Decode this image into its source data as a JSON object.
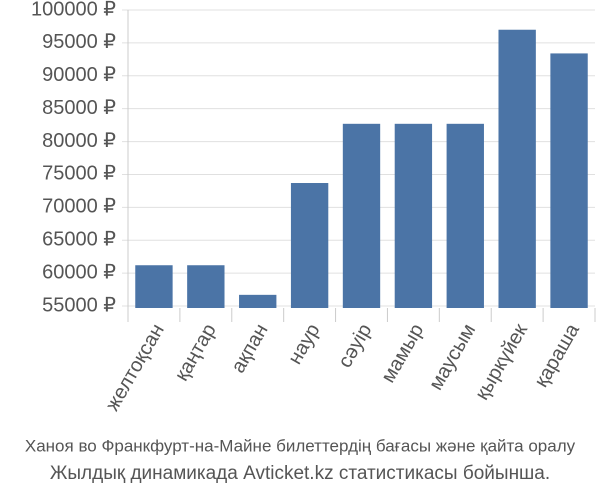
{
  "chart_data": {
    "type": "bar",
    "categories": [
      "желтоқсан",
      "қаңтар",
      "ақпан",
      "наур",
      "сәуір",
      "мамыр",
      "маусым",
      "қыркүйек",
      "қараша"
    ],
    "values": [
      61200,
      61200,
      56700,
      73700,
      82700,
      82700,
      82700,
      97000,
      93400
    ],
    "color": "#4b74a6",
    "ylim": [
      54700,
      100000
    ],
    "yticks": [
      {
        "value": 55000,
        "label": "55000 ₽"
      },
      {
        "value": 60000,
        "label": "60000 ₽"
      },
      {
        "value": 65000,
        "label": "65000 ₽"
      },
      {
        "value": 70000,
        "label": "70000 ₽"
      },
      {
        "value": 75000,
        "label": "75000 ₽"
      },
      {
        "value": 80000,
        "label": "80000 ₽"
      },
      {
        "value": 85000,
        "label": "85000 ₽"
      },
      {
        "value": 90000,
        "label": "90000 ₽"
      },
      {
        "value": 95000,
        "label": "95000 ₽"
      },
      {
        "value": 100000,
        "label": "100000 ₽"
      }
    ],
    "grid": true,
    "caption": [
      "Ханоя во Франкфурт-на-Майне билеттердің бағасы жәнe қайта оралу",
      "Жылдық динамикада Avticket.kz статистикасы бойынша."
    ]
  }
}
